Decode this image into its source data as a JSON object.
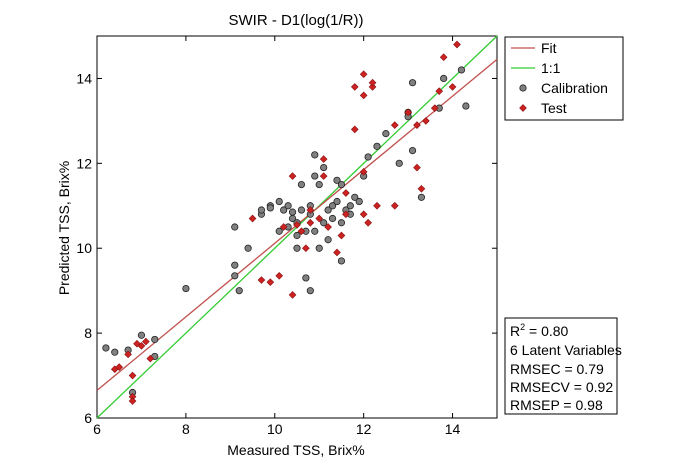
{
  "chart_data": {
    "type": "scatter",
    "title": "SWIR - D1(log(1/R))",
    "xlabel": "Measured TSS, Brix%",
    "ylabel": "Predicted TSS, Brix%",
    "xlim": [
      6,
      15
    ],
    "ylim": [
      6,
      15
    ],
    "x_ticks": [
      6,
      8,
      10,
      12,
      14
    ],
    "y_ticks": [
      6,
      8,
      10,
      12,
      14
    ],
    "grid": false,
    "legend_position": "top-right",
    "legend": [
      {
        "label": "Fit",
        "kind": "line",
        "color": "#c0504d"
      },
      {
        "label": "1:1",
        "kind": "line",
        "color": "#33cc33"
      },
      {
        "label": "Calibration",
        "kind": "circle",
        "color": "#808080"
      },
      {
        "label": "Test",
        "kind": "diamond",
        "color": "#cc2222"
      }
    ],
    "lines": {
      "fit": {
        "color": "#c0504d",
        "x": [
          6,
          15
        ],
        "y": [
          6.65,
          14.45
        ]
      },
      "identity": {
        "color": "#33cc33",
        "x": [
          6,
          15
        ],
        "y": [
          6,
          15
        ]
      }
    },
    "stats_box": {
      "r2_label": "R",
      "r2_exponent": "2",
      "r2_value": " = 0.80",
      "latent": "6 Latent Variables",
      "rmsec": "RMSEC = 0.79",
      "rmsecv": "RMSECV = 0.92",
      "rmsep": "RMSEP = 0.98"
    },
    "series": [
      {
        "name": "Calibration",
        "marker": "circle",
        "color": "#808080",
        "points": [
          [
            6.2,
            7.65
          ],
          [
            6.4,
            7.55
          ],
          [
            6.7,
            7.6
          ],
          [
            6.8,
            6.6
          ],
          [
            7.0,
            7.95
          ],
          [
            7.3,
            7.85
          ],
          [
            7.3,
            7.45
          ],
          [
            8.0,
            9.05
          ],
          [
            9.1,
            9.6
          ],
          [
            9.1,
            9.35
          ],
          [
            9.2,
            9.0
          ],
          [
            9.1,
            10.5
          ],
          [
            9.4,
            10.0
          ],
          [
            9.7,
            10.8
          ],
          [
            9.7,
            10.9
          ],
          [
            9.9,
            11.0
          ],
          [
            9.9,
            10.95
          ],
          [
            10.1,
            11.1
          ],
          [
            10.2,
            10.9
          ],
          [
            10.1,
            10.4
          ],
          [
            10.3,
            10.5
          ],
          [
            10.4,
            10.7
          ],
          [
            10.3,
            11.0
          ],
          [
            10.4,
            10.85
          ],
          [
            10.5,
            10.6
          ],
          [
            10.5,
            10.3
          ],
          [
            10.5,
            10.0
          ],
          [
            10.6,
            11.5
          ],
          [
            10.6,
            10.9
          ],
          [
            10.7,
            10.4
          ],
          [
            10.7,
            9.3
          ],
          [
            10.8,
            11.0
          ],
          [
            10.8,
            10.8
          ],
          [
            10.9,
            11.7
          ],
          [
            10.9,
            12.2
          ],
          [
            10.9,
            10.4
          ],
          [
            11.0,
            11.5
          ],
          [
            11.0,
            10.0
          ],
          [
            11.1,
            10.6
          ],
          [
            11.1,
            11.9
          ],
          [
            11.2,
            10.9
          ],
          [
            11.2,
            10.2
          ],
          [
            11.3,
            11.0
          ],
          [
            11.3,
            10.7
          ],
          [
            11.4,
            11.1
          ],
          [
            11.4,
            11.6
          ],
          [
            11.5,
            11.5
          ],
          [
            11.5,
            10.6
          ],
          [
            11.5,
            9.7
          ],
          [
            11.6,
            10.9
          ],
          [
            11.7,
            11.0
          ],
          [
            11.7,
            10.8
          ],
          [
            11.8,
            11.2
          ],
          [
            11.9,
            11.1
          ],
          [
            12.0,
            11.7
          ],
          [
            12.1,
            12.15
          ],
          [
            12.3,
            12.4
          ],
          [
            12.5,
            12.7
          ],
          [
            12.8,
            12.0
          ],
          [
            13.0,
            13.2
          ],
          [
            13.0,
            13.1
          ],
          [
            13.1,
            13.9
          ],
          [
            13.1,
            12.3
          ],
          [
            13.3,
            11.2
          ],
          [
            13.7,
            13.3
          ],
          [
            13.8,
            14.0
          ],
          [
            14.2,
            14.2
          ],
          [
            14.3,
            13.35
          ],
          [
            10.8,
            9.0
          ]
        ]
      },
      {
        "name": "Test",
        "marker": "diamond",
        "color": "#cc2222",
        "points": [
          [
            6.4,
            7.15
          ],
          [
            6.5,
            7.2
          ],
          [
            6.7,
            7.5
          ],
          [
            6.8,
            7.0
          ],
          [
            6.8,
            6.5
          ],
          [
            6.8,
            6.4
          ],
          [
            6.9,
            7.75
          ],
          [
            7.0,
            7.7
          ],
          [
            7.1,
            7.8
          ],
          [
            7.2,
            7.4
          ],
          [
            9.5,
            10.7
          ],
          [
            9.7,
            9.25
          ],
          [
            9.9,
            9.2
          ],
          [
            10.1,
            9.35
          ],
          [
            10.2,
            10.5
          ],
          [
            10.4,
            11.7
          ],
          [
            10.4,
            8.9
          ],
          [
            10.5,
            10.55
          ],
          [
            10.6,
            10.4
          ],
          [
            10.7,
            10.0
          ],
          [
            10.8,
            10.9
          ],
          [
            10.8,
            10.6
          ],
          [
            11.0,
            10.7
          ],
          [
            11.1,
            12.1
          ],
          [
            11.1,
            11.7
          ],
          [
            11.2,
            10.5
          ],
          [
            11.5,
            10.3
          ],
          [
            11.6,
            10.8
          ],
          [
            11.6,
            11.3
          ],
          [
            11.8,
            12.8
          ],
          [
            11.8,
            13.8
          ],
          [
            12.0,
            10.8
          ],
          [
            12.0,
            13.6
          ],
          [
            12.0,
            14.1
          ],
          [
            12.1,
            10.6
          ],
          [
            12.2,
            13.8
          ],
          [
            12.2,
            13.9
          ],
          [
            12.3,
            11.0
          ],
          [
            12.7,
            11.0
          ],
          [
            12.7,
            12.9
          ],
          [
            13.0,
            13.2
          ],
          [
            13.2,
            12.9
          ],
          [
            13.3,
            11.4
          ],
          [
            13.4,
            13.0
          ],
          [
            13.6,
            13.3
          ],
          [
            13.7,
            13.7
          ],
          [
            13.8,
            14.5
          ],
          [
            14.0,
            13.8
          ],
          [
            14.1,
            14.8
          ],
          [
            13.2,
            11.9
          ],
          [
            12.0,
            11.8
          ],
          [
            11.4,
            9.9
          ]
        ]
      }
    ]
  }
}
